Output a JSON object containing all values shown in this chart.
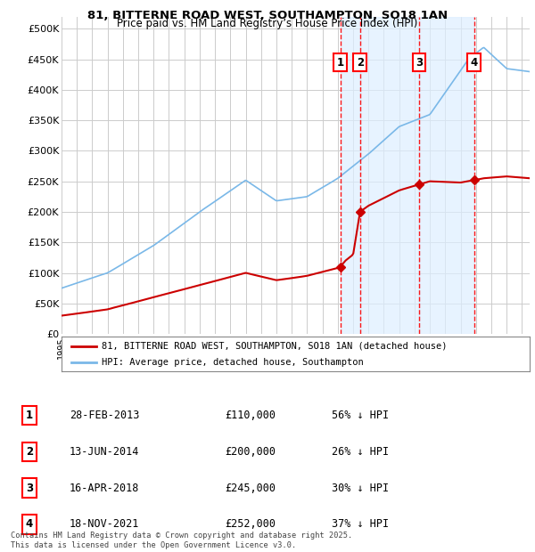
{
  "title1": "81, BITTERNE ROAD WEST, SOUTHAMPTON, SO18 1AN",
  "title2": "Price paid vs. HM Land Registry’s House Price Index (HPI)",
  "ylabel_ticks": [
    "£0",
    "£50K",
    "£100K",
    "£150K",
    "£200K",
    "£250K",
    "£300K",
    "£350K",
    "£400K",
    "£450K",
    "£500K"
  ],
  "ytick_values": [
    0,
    50000,
    100000,
    150000,
    200000,
    250000,
    300000,
    350000,
    400000,
    450000,
    500000
  ],
  "ylim": [
    0,
    520000
  ],
  "xlim_start": 1995.0,
  "xlim_end": 2025.5,
  "hpi_color": "#7ab8e8",
  "price_color": "#cc0000",
  "grid_color": "#cccccc",
  "sale_dates": [
    2013.16,
    2014.45,
    2018.29,
    2021.88
  ],
  "sale_prices": [
    110000,
    200000,
    245000,
    252000
  ],
  "sale_labels": [
    "1",
    "2",
    "3",
    "4"
  ],
  "shade_color": "#ddeeff",
  "legend_entries": [
    "81, BITTERNE ROAD WEST, SOUTHAMPTON, SO18 1AN (detached house)",
    "HPI: Average price, detached house, Southampton"
  ],
  "table_data": [
    [
      "1",
      "28-FEB-2013",
      "£110,000",
      "56% ↓ HPI"
    ],
    [
      "2",
      "13-JUN-2014",
      "£200,000",
      "26% ↓ HPI"
    ],
    [
      "3",
      "16-APR-2018",
      "£245,000",
      "30% ↓ HPI"
    ],
    [
      "4",
      "18-NOV-2021",
      "£252,000",
      "37% ↓ HPI"
    ]
  ],
  "footer": "Contains HM Land Registry data © Crown copyright and database right 2025.\nThis data is licensed under the Open Government Licence v3.0."
}
